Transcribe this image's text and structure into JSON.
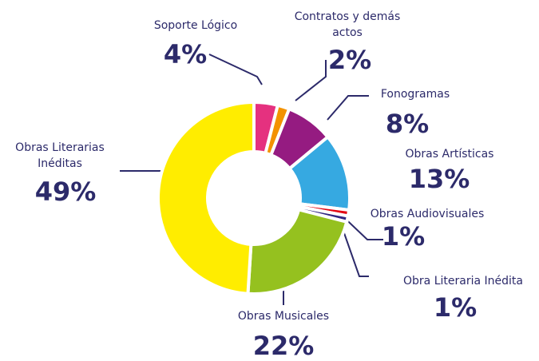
{
  "chart_data": {
    "type": "pie",
    "donut": true,
    "categories": [
      "Soporte Lógico",
      "Contratos y demás actos",
      "Fonogramas",
      "Obras Artísticas",
      "Obras Audiovisuales",
      "Obra Literaria Inédita",
      "Obras Musicales",
      "Obras Literarias Inéditas"
    ],
    "values": [
      4,
      2,
      8,
      13,
      1,
      1,
      22,
      49
    ],
    "value_labels": [
      "4%",
      "2%",
      "8%",
      "13%",
      "1%",
      "1%",
      "22%",
      "49%"
    ],
    "colors": [
      "#e5317f",
      "#f39200",
      "#951b81",
      "#36a9e1",
      "#e30613",
      "#312783",
      "#95c11f",
      "#ffed00"
    ]
  }
}
